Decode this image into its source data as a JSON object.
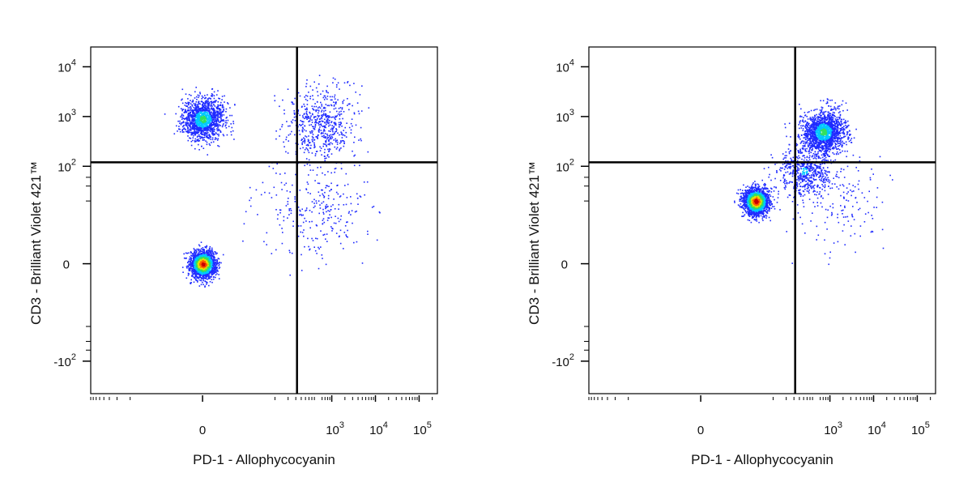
{
  "chart_data": [
    {
      "type": "scatter",
      "xlabel": "PD-1 - Allophycocyanin",
      "ylabel": "CD3 - Brilliant Violet 421™",
      "x_scale": "biexponential",
      "y_scale": "biexponential",
      "x_tick_labels": [
        "0",
        "10^3",
        "10^4",
        "10^5"
      ],
      "y_tick_labels": [
        "10^4",
        "10^3",
        "10^2",
        "0",
        "-10^2"
      ],
      "x_ticks": [
        0,
        1000,
        10000,
        100000
      ],
      "y_ticks": [
        10000,
        1000,
        100,
        0,
        -100
      ],
      "gate": {
        "x": 160,
        "y": 120
      },
      "color_scale": [
        "#1f2bff",
        "#00c8ff",
        "#34e05c",
        "#e8e000",
        "#ff5a00",
        "#c80000"
      ],
      "populations": [
        {
          "x": 0,
          "y": 0,
          "share": 0.45,
          "density": "very high"
        },
        {
          "x": 0,
          "y": 900,
          "share": 0.34,
          "density": "high"
        },
        {
          "x": 600,
          "y": 700,
          "share": 0.14,
          "density": "low"
        },
        {
          "x": 400,
          "y": 15,
          "share": 0.07,
          "density": "very low"
        }
      ]
    },
    {
      "type": "scatter",
      "xlabel": "PD-1 - Allophycocyanin",
      "ylabel": "CD3 - Brilliant Violet 421™",
      "x_scale": "biexponential",
      "y_scale": "biexponential",
      "x_tick_labels": [
        "0",
        "10^3",
        "10^4",
        "10^5"
      ],
      "y_tick_labels": [
        "10^4",
        "10^3",
        "10^2",
        "0",
        "-10^2"
      ],
      "x_ticks": [
        0,
        1000,
        10000,
        100000
      ],
      "y_ticks": [
        10000,
        1000,
        100,
        0,
        -100
      ],
      "gate": {
        "x": 160,
        "y": 120
      },
      "color_scale": [
        "#1f2bff",
        "#00c8ff",
        "#34e05c",
        "#e8e000",
        "#ff5a00",
        "#c80000"
      ],
      "populations": [
        {
          "x": 20,
          "y": 20,
          "share": 0.42,
          "density": "very high"
        },
        {
          "x": 700,
          "y": 500,
          "share": 0.4,
          "density": "high"
        },
        {
          "x": 250,
          "y": 80,
          "share": 0.14,
          "density": "medium"
        },
        {
          "x": 1500,
          "y": 20,
          "share": 0.04,
          "density": "very low"
        }
      ]
    }
  ]
}
